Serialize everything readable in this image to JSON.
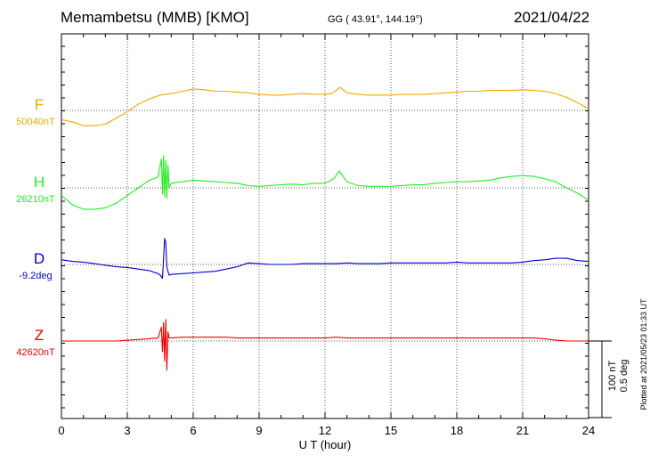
{
  "header": {
    "station": "Memambetsu (MMB)  [KMO]",
    "coords": "GG ( 43.91°, 144.19°)",
    "date": "2021/04/22"
  },
  "footer": {
    "plotted_at": "Plotted at 2021/05/23 01:33 UT"
  },
  "scale_bar": {
    "nt": "100 nT",
    "deg": "0.5 deg"
  },
  "chart_data": {
    "type": "line",
    "xlabel": "U T (hour)",
    "xlim": [
      0,
      24
    ],
    "xticks": [
      0,
      3,
      6,
      9,
      12,
      15,
      18,
      21,
      24
    ],
    "grid": true,
    "series": [
      {
        "name": "F",
        "baseline": "50040nT",
        "color": "#f0a800",
        "points": [
          [
            0,
            -12
          ],
          [
            0.5,
            -15
          ],
          [
            1,
            -20
          ],
          [
            1.5,
            -20
          ],
          [
            2,
            -18
          ],
          [
            2.5,
            -10
          ],
          [
            3,
            -2
          ],
          [
            3.5,
            8
          ],
          [
            4,
            15
          ],
          [
            4.5,
            20
          ],
          [
            5,
            22
          ],
          [
            5.5,
            25
          ],
          [
            6,
            28
          ],
          [
            6.5,
            27
          ],
          [
            7,
            25
          ],
          [
            7.5,
            25
          ],
          [
            8,
            24
          ],
          [
            8.5,
            23
          ],
          [
            9,
            21
          ],
          [
            9.5,
            20
          ],
          [
            10,
            20
          ],
          [
            10.5,
            21
          ],
          [
            11,
            22
          ],
          [
            11.5,
            21
          ],
          [
            12,
            21
          ],
          [
            12.3,
            22
          ],
          [
            12.7,
            30
          ],
          [
            13,
            23
          ],
          [
            13.5,
            21
          ],
          [
            14,
            20
          ],
          [
            14.5,
            20
          ],
          [
            15,
            20
          ],
          [
            15.5,
            21
          ],
          [
            16,
            21
          ],
          [
            16.5,
            21
          ],
          [
            17,
            22
          ],
          [
            17.5,
            23
          ],
          [
            18,
            24
          ],
          [
            18.5,
            25
          ],
          [
            19,
            25
          ],
          [
            19.5,
            26
          ],
          [
            20,
            26
          ],
          [
            20.5,
            26
          ],
          [
            21,
            27
          ],
          [
            21.5,
            26
          ],
          [
            22,
            25
          ],
          [
            22.5,
            22
          ],
          [
            23,
            17
          ],
          [
            23.5,
            10
          ],
          [
            24,
            2
          ]
        ]
      },
      {
        "name": "H",
        "baseline": "26210nT",
        "color": "#22ee22",
        "points": [
          [
            0,
            -10
          ],
          [
            0.5,
            -22
          ],
          [
            1,
            -28
          ],
          [
            1.5,
            -28
          ],
          [
            2,
            -26
          ],
          [
            2.5,
            -20
          ],
          [
            3,
            -10
          ],
          [
            3.5,
            0
          ],
          [
            4,
            10
          ],
          [
            4.4,
            14
          ],
          [
            4.55,
            38
          ],
          [
            4.6,
            -8
          ],
          [
            4.65,
            42
          ],
          [
            4.7,
            -12
          ],
          [
            4.75,
            36
          ],
          [
            4.8,
            -14
          ],
          [
            4.85,
            30
          ],
          [
            4.9,
            0
          ],
          [
            5,
            6
          ],
          [
            5.5,
            8
          ],
          [
            6,
            10
          ],
          [
            6.5,
            9
          ],
          [
            7,
            8
          ],
          [
            7.5,
            7
          ],
          [
            8,
            6
          ],
          [
            8.5,
            3
          ],
          [
            9,
            2
          ],
          [
            9.5,
            3
          ],
          [
            10,
            4
          ],
          [
            10.5,
            5
          ],
          [
            11,
            4
          ],
          [
            11.5,
            6
          ],
          [
            12,
            6
          ],
          [
            12.4,
            12
          ],
          [
            12.65,
            22
          ],
          [
            13,
            8
          ],
          [
            13.5,
            3
          ],
          [
            14,
            2
          ],
          [
            14.5,
            2
          ],
          [
            15,
            2
          ],
          [
            15.5,
            3
          ],
          [
            16,
            4
          ],
          [
            16.5,
            4
          ],
          [
            17,
            6
          ],
          [
            17.5,
            7
          ],
          [
            18,
            8
          ],
          [
            18.5,
            8
          ],
          [
            19,
            9
          ],
          [
            19.5,
            10
          ],
          [
            20,
            13
          ],
          [
            20.5,
            15
          ],
          [
            21,
            16
          ],
          [
            21.5,
            15
          ],
          [
            22,
            12
          ],
          [
            22.5,
            8
          ],
          [
            23,
            0
          ],
          [
            23.5,
            -7
          ],
          [
            24,
            -16
          ]
        ]
      },
      {
        "name": "D",
        "baseline": "-9.2deg",
        "color": "#0000cc",
        "points": [
          [
            0,
            6
          ],
          [
            0.5,
            4
          ],
          [
            1,
            3
          ],
          [
            1.5,
            1
          ],
          [
            2,
            -1
          ],
          [
            2.5,
            -3
          ],
          [
            3,
            -4
          ],
          [
            3.5,
            -6
          ],
          [
            4,
            -8
          ],
          [
            4.4,
            -12
          ],
          [
            4.5,
            -14
          ],
          [
            4.6,
            -18
          ],
          [
            4.65,
            8
          ],
          [
            4.7,
            34
          ],
          [
            4.75,
            28
          ],
          [
            4.8,
            -4
          ],
          [
            4.9,
            -14
          ],
          [
            5,
            -13
          ],
          [
            5.5,
            -12
          ],
          [
            6,
            -11
          ],
          [
            6.5,
            -10
          ],
          [
            7,
            -9
          ],
          [
            7.5,
            -6
          ],
          [
            8,
            -3
          ],
          [
            8.5,
            2
          ],
          [
            9,
            1
          ],
          [
            9.5,
            0
          ],
          [
            10,
            0
          ],
          [
            10.5,
            0
          ],
          [
            11,
            1
          ],
          [
            11.5,
            1
          ],
          [
            12,
            1
          ],
          [
            12.5,
            1
          ],
          [
            13,
            2
          ],
          [
            13.5,
            1
          ],
          [
            14,
            1
          ],
          [
            14.5,
            1
          ],
          [
            15,
            2
          ],
          [
            15.5,
            2
          ],
          [
            16,
            2
          ],
          [
            16.5,
            2
          ],
          [
            17,
            2
          ],
          [
            17.5,
            2
          ],
          [
            18,
            3
          ],
          [
            18.5,
            2
          ],
          [
            19,
            2
          ],
          [
            19.5,
            2
          ],
          [
            20,
            2
          ],
          [
            20.5,
            2
          ],
          [
            21,
            3
          ],
          [
            21.5,
            5
          ],
          [
            22,
            6
          ],
          [
            22.5,
            8
          ],
          [
            23,
            8
          ],
          [
            23.5,
            5
          ],
          [
            24,
            4
          ]
        ]
      },
      {
        "name": "Z",
        "baseline": "42620nT",
        "color": "#ee0000",
        "points": [
          [
            0,
            0
          ],
          [
            0.5,
            0
          ],
          [
            1,
            0
          ],
          [
            1.5,
            0
          ],
          [
            2,
            0
          ],
          [
            2.5,
            0
          ],
          [
            3,
            1
          ],
          [
            3.5,
            2
          ],
          [
            4,
            3
          ],
          [
            4.4,
            4
          ],
          [
            4.55,
            18
          ],
          [
            4.6,
            -14
          ],
          [
            4.65,
            24
          ],
          [
            4.7,
            -26
          ],
          [
            4.75,
            28
          ],
          [
            4.8,
            -38
          ],
          [
            4.85,
            12
          ],
          [
            4.9,
            4
          ],
          [
            5,
            4
          ],
          [
            5.5,
            5
          ],
          [
            6,
            5
          ],
          [
            6.5,
            5
          ],
          [
            7,
            5
          ],
          [
            7.5,
            5
          ],
          [
            8,
            4
          ],
          [
            8.5,
            4
          ],
          [
            9,
            4
          ],
          [
            9.5,
            4
          ],
          [
            10,
            4
          ],
          [
            10.5,
            4
          ],
          [
            11,
            4
          ],
          [
            11.5,
            4
          ],
          [
            12,
            4
          ],
          [
            12.5,
            5
          ],
          [
            13,
            4
          ],
          [
            13.5,
            4
          ],
          [
            14,
            4
          ],
          [
            14.5,
            4
          ],
          [
            15,
            4
          ],
          [
            15.5,
            4
          ],
          [
            16,
            4
          ],
          [
            16.5,
            4
          ],
          [
            17,
            4
          ],
          [
            17.5,
            4
          ],
          [
            18,
            4
          ],
          [
            18.5,
            4
          ],
          [
            19,
            4
          ],
          [
            19.5,
            4
          ],
          [
            20,
            4
          ],
          [
            20.5,
            4
          ],
          [
            21,
            4
          ],
          [
            21.5,
            4
          ],
          [
            22,
            3
          ],
          [
            22.5,
            1
          ],
          [
            23,
            0
          ],
          [
            23.5,
            0
          ],
          [
            24,
            0
          ]
        ]
      }
    ]
  }
}
